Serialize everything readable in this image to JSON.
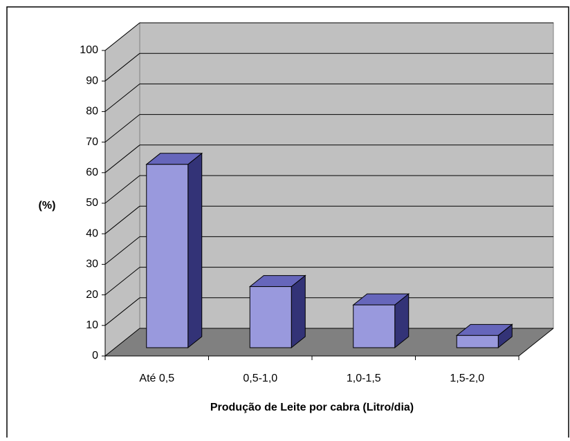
{
  "chart_data": {
    "type": "bar3d",
    "x_label": "Produção de Leite por cabra (Litro/dia)",
    "y_label": "(%)",
    "categories": [
      "Até 0,5",
      "0,5-1,0",
      "1,0-1,5",
      "1,5-2,0"
    ],
    "values": [
      60,
      20,
      14,
      4
    ],
    "color": "#9999dd",
    "ylim": [
      0,
      100
    ],
    "yticks": [
      0,
      10,
      20,
      30,
      40,
      50,
      60,
      70,
      80,
      90,
      100
    ],
    "grid": true
  }
}
